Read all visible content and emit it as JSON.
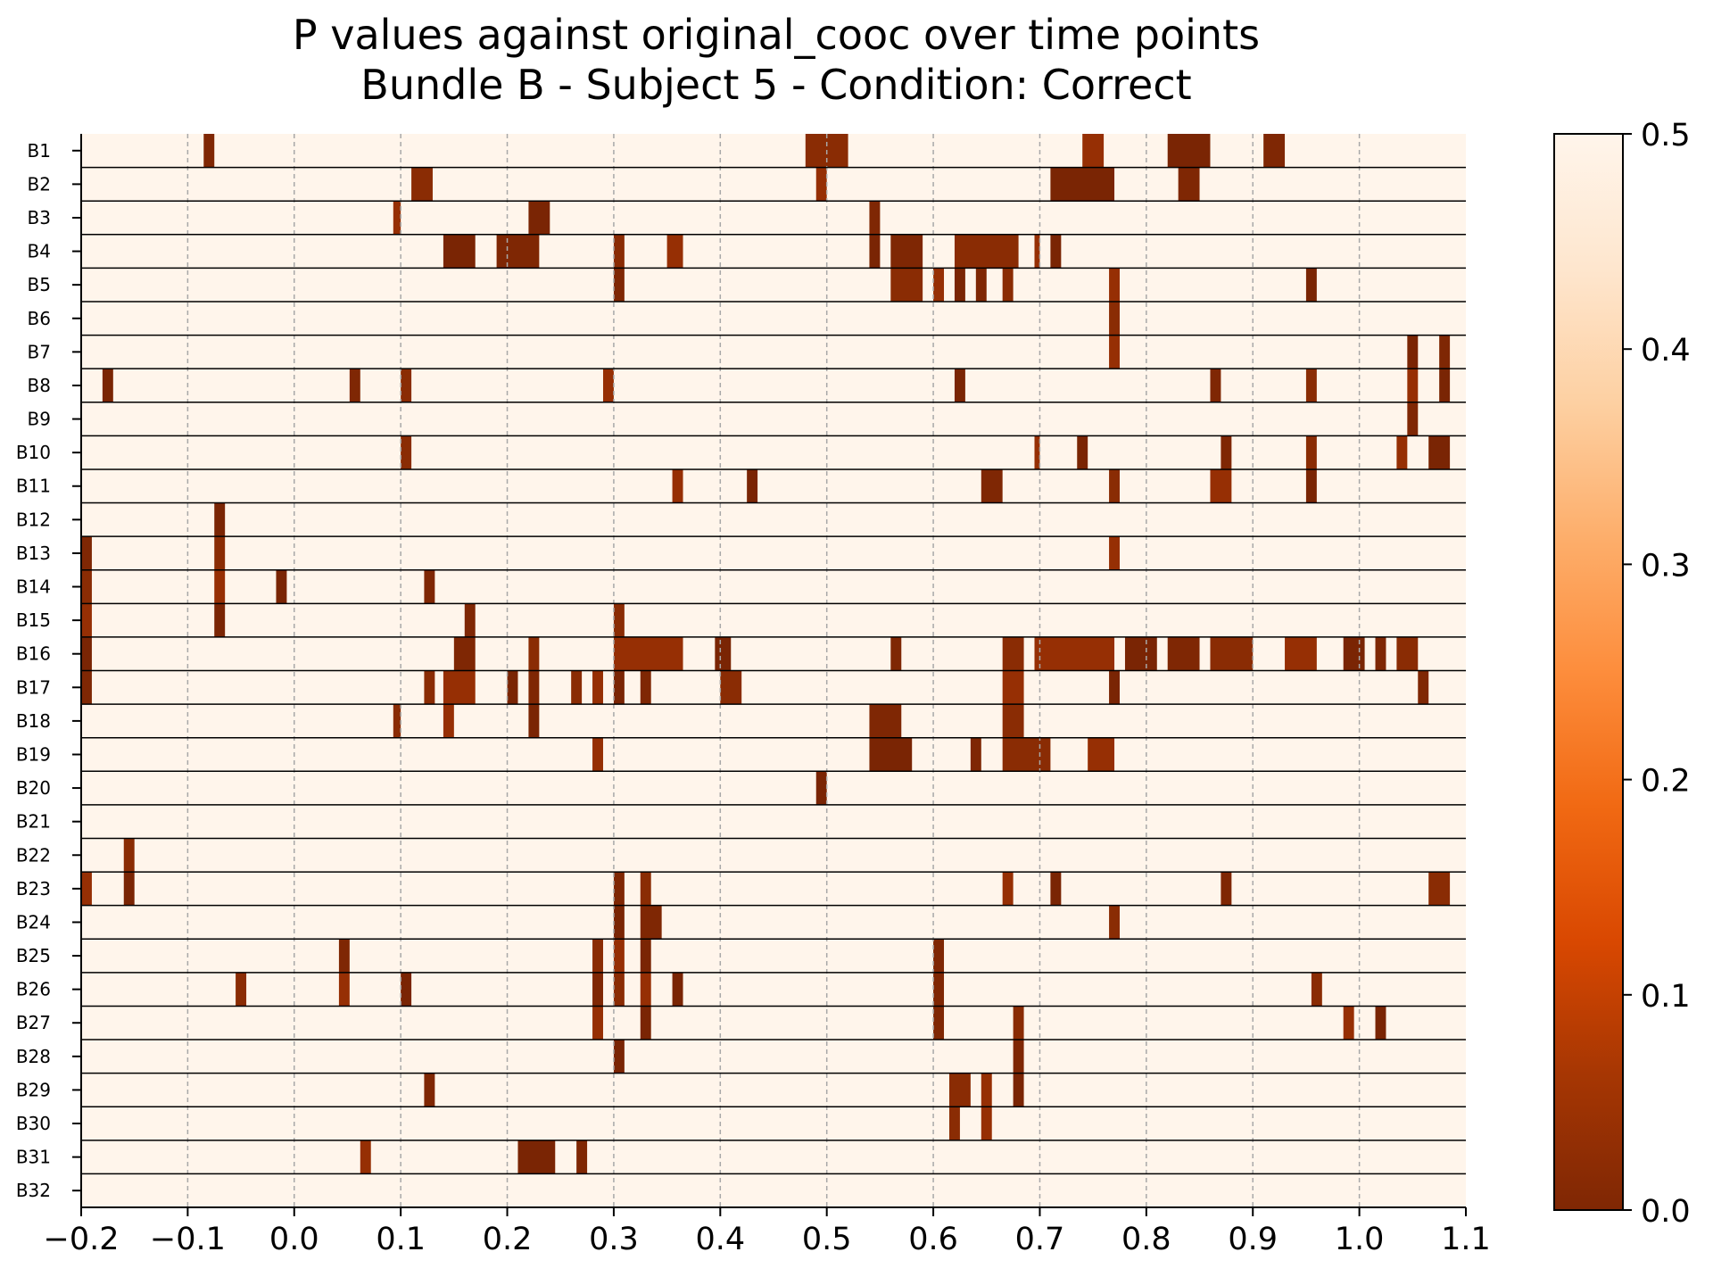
{
  "chart_data": {
    "type": "heatmap",
    "title": "P values against original_cooc over time points",
    "subtitle": "Bundle B - Subject 5 - Condition: Correct",
    "xlabel": "",
    "ylabel": "",
    "xlim": [
      -0.2,
      1.1
    ],
    "xticks": [
      -0.2,
      -0.1,
      0.0,
      0.1,
      0.2,
      0.3,
      0.4,
      0.5,
      0.6,
      0.7,
      0.8,
      0.9,
      1.0,
      1.1
    ],
    "xtick_labels": [
      "−0.2",
      "−0.1",
      "0.0",
      "0.1",
      "0.2",
      "0.3",
      "0.4",
      "0.5",
      "0.6",
      "0.7",
      "0.8",
      "0.9",
      "1.0",
      "1.1"
    ],
    "grid": "vertical dashed",
    "rows": [
      "B1",
      "B2",
      "B3",
      "B4",
      "B5",
      "B6",
      "B7",
      "B8",
      "B9",
      "B10",
      "B11",
      "B12",
      "B13",
      "B14",
      "B15",
      "B16",
      "B17",
      "B18",
      "B19",
      "B20",
      "B21",
      "B22",
      "B23",
      "B24",
      "B25",
      "B26",
      "B27",
      "B28",
      "B29",
      "B30",
      "B31",
      "B32"
    ],
    "background_value": 0.5,
    "colorbar": {
      "min": 0.0,
      "max": 0.5,
      "ticks": [
        "0.0",
        "0.1",
        "0.2",
        "0.3",
        "0.4",
        "0.5"
      ],
      "colormap": "Oranges_r",
      "stops": [
        "#7f2704",
        "#a63603",
        "#d94801",
        "#f16913",
        "#fd8d3c",
        "#fdae6b",
        "#fdd0a2",
        "#fee6ce",
        "#fff5eb"
      ]
    },
    "significant_segments": [
      {
        "row": "B1",
        "x": [
          [
            -0.085,
            -0.075
          ],
          [
            0.48,
            0.52
          ],
          [
            0.74,
            0.76
          ],
          [
            0.82,
            0.86
          ],
          [
            0.91,
            0.93
          ]
        ]
      },
      {
        "row": "B2",
        "x": [
          [
            0.11,
            0.13
          ],
          [
            0.49,
            0.5
          ],
          [
            0.71,
            0.77
          ],
          [
            0.83,
            0.85
          ]
        ]
      },
      {
        "row": "B3",
        "x": [
          [
            0.093,
            0.1
          ],
          [
            0.22,
            0.24
          ],
          [
            0.54,
            0.55
          ]
        ]
      },
      {
        "row": "B4",
        "x": [
          [
            0.14,
            0.17
          ],
          [
            0.19,
            0.23
          ],
          [
            0.3,
            0.31
          ],
          [
            0.35,
            0.365
          ],
          [
            0.54,
            0.55
          ],
          [
            0.56,
            0.59
          ],
          [
            0.62,
            0.68
          ],
          [
            0.695,
            0.7
          ],
          [
            0.71,
            0.72
          ]
        ]
      },
      {
        "row": "B5",
        "x": [
          [
            0.3,
            0.31
          ],
          [
            0.56,
            0.59
          ],
          [
            0.6,
            0.61
          ],
          [
            0.62,
            0.63
          ],
          [
            0.64,
            0.65
          ],
          [
            0.665,
            0.675
          ],
          [
            0.765,
            0.775
          ],
          [
            0.95,
            0.96
          ]
        ]
      },
      {
        "row": "B6",
        "x": [
          [
            0.765,
            0.775
          ]
        ]
      },
      {
        "row": "B7",
        "x": [
          [
            0.765,
            0.775
          ],
          [
            1.045,
            1.055
          ],
          [
            1.075,
            1.085
          ]
        ]
      },
      {
        "row": "B8",
        "x": [
          [
            -0.18,
            -0.17
          ],
          [
            0.052,
            0.062
          ],
          [
            0.1,
            0.11
          ],
          [
            0.29,
            0.3
          ],
          [
            0.62,
            0.63
          ],
          [
            0.86,
            0.87
          ],
          [
            0.95,
            0.96
          ],
          [
            1.045,
            1.055
          ],
          [
            1.075,
            1.085
          ]
        ]
      },
      {
        "row": "B9",
        "x": [
          [
            1.045,
            1.055
          ]
        ]
      },
      {
        "row": "B10",
        "x": [
          [
            0.1,
            0.11
          ],
          [
            0.695,
            0.7
          ],
          [
            0.735,
            0.745
          ],
          [
            0.87,
            0.88
          ],
          [
            0.95,
            0.96
          ],
          [
            1.035,
            1.045
          ],
          [
            1.065,
            1.085
          ]
        ]
      },
      {
        "row": "B11",
        "x": [
          [
            0.355,
            0.365
          ],
          [
            0.425,
            0.435
          ],
          [
            0.645,
            0.665
          ],
          [
            0.765,
            0.775
          ],
          [
            0.86,
            0.88
          ],
          [
            0.95,
            0.96
          ]
        ]
      },
      {
        "row": "B12",
        "x": [
          [
            -0.075,
            -0.065
          ]
        ]
      },
      {
        "row": "B13",
        "x": [
          [
            -0.2,
            -0.19
          ],
          [
            -0.075,
            -0.065
          ],
          [
            0.765,
            0.775
          ]
        ]
      },
      {
        "row": "B14",
        "x": [
          [
            -0.2,
            -0.19
          ],
          [
            -0.075,
            -0.065
          ],
          [
            -0.017,
            -0.007
          ],
          [
            0.122,
            0.132
          ]
        ]
      },
      {
        "row": "B15",
        "x": [
          [
            -0.2,
            -0.19
          ],
          [
            -0.075,
            -0.065
          ],
          [
            0.16,
            0.17
          ],
          [
            0.3,
            0.31
          ]
        ]
      },
      {
        "row": "B16",
        "x": [
          [
            -0.2,
            -0.19
          ],
          [
            0.15,
            0.17
          ],
          [
            0.22,
            0.23
          ],
          [
            0.3,
            0.365
          ],
          [
            0.395,
            0.41
          ],
          [
            0.56,
            0.57
          ],
          [
            0.665,
            0.685
          ],
          [
            0.695,
            0.77
          ],
          [
            0.78,
            0.81
          ],
          [
            0.82,
            0.85
          ],
          [
            0.86,
            0.9
          ],
          [
            0.93,
            0.96
          ],
          [
            0.985,
            1.005
          ],
          [
            1.015,
            1.025
          ],
          [
            1.035,
            1.055
          ]
        ]
      },
      {
        "row": "B17",
        "x": [
          [
            -0.2,
            -0.19
          ],
          [
            0.122,
            0.132
          ],
          [
            0.14,
            0.17
          ],
          [
            0.2,
            0.21
          ],
          [
            0.22,
            0.23
          ],
          [
            0.26,
            0.27
          ],
          [
            0.28,
            0.29
          ],
          [
            0.3,
            0.31
          ],
          [
            0.325,
            0.335
          ],
          [
            0.4,
            0.42
          ],
          [
            0.665,
            0.685
          ],
          [
            0.765,
            0.775
          ],
          [
            1.055,
            1.065
          ]
        ]
      },
      {
        "row": "B18",
        "x": [
          [
            0.093,
            0.1
          ],
          [
            0.14,
            0.15
          ],
          [
            0.22,
            0.23
          ],
          [
            0.54,
            0.57
          ],
          [
            0.665,
            0.685
          ]
        ]
      },
      {
        "row": "B19",
        "x": [
          [
            0.28,
            0.29
          ],
          [
            0.54,
            0.58
          ],
          [
            0.635,
            0.645
          ],
          [
            0.665,
            0.71
          ],
          [
            0.745,
            0.77
          ]
        ]
      },
      {
        "row": "B20",
        "x": [
          [
            0.49,
            0.5
          ]
        ]
      },
      {
        "row": "B21",
        "x": []
      },
      {
        "row": "B22",
        "x": [
          [
            -0.16,
            -0.15
          ]
        ]
      },
      {
        "row": "B23",
        "x": [
          [
            -0.2,
            -0.19
          ],
          [
            -0.16,
            -0.15
          ],
          [
            0.3,
            0.31
          ],
          [
            0.325,
            0.335
          ],
          [
            0.665,
            0.675
          ],
          [
            0.71,
            0.72
          ],
          [
            0.87,
            0.88
          ],
          [
            1.065,
            1.085
          ]
        ]
      },
      {
        "row": "B24",
        "x": [
          [
            0.3,
            0.31
          ],
          [
            0.325,
            0.345
          ],
          [
            0.765,
            0.775
          ]
        ]
      },
      {
        "row": "B25",
        "x": [
          [
            0.042,
            0.052
          ],
          [
            0.28,
            0.29
          ],
          [
            0.3,
            0.31
          ],
          [
            0.325,
            0.335
          ],
          [
            0.6,
            0.61
          ]
        ]
      },
      {
        "row": "B26",
        "x": [
          [
            -0.055,
            -0.045
          ],
          [
            0.042,
            0.052
          ],
          [
            0.1,
            0.11
          ],
          [
            0.28,
            0.29
          ],
          [
            0.3,
            0.31
          ],
          [
            0.325,
            0.335
          ],
          [
            0.355,
            0.365
          ],
          [
            0.6,
            0.61
          ],
          [
            0.955,
            0.965
          ]
        ]
      },
      {
        "row": "B27",
        "x": [
          [
            0.28,
            0.29
          ],
          [
            0.325,
            0.335
          ],
          [
            0.6,
            0.61
          ],
          [
            0.675,
            0.685
          ],
          [
            0.985,
            0.995
          ],
          [
            1.015,
            1.025
          ]
        ]
      },
      {
        "row": "B28",
        "x": [
          [
            0.3,
            0.31
          ],
          [
            0.675,
            0.685
          ]
        ]
      },
      {
        "row": "B29",
        "x": [
          [
            0.122,
            0.132
          ],
          [
            0.615,
            0.635
          ],
          [
            0.645,
            0.655
          ],
          [
            0.675,
            0.685
          ]
        ]
      },
      {
        "row": "B30",
        "x": [
          [
            0.615,
            0.625
          ],
          [
            0.645,
            0.655
          ]
        ]
      },
      {
        "row": "B31",
        "x": [
          [
            0.062,
            0.072
          ],
          [
            0.21,
            0.245
          ],
          [
            0.265,
            0.275
          ]
        ]
      },
      {
        "row": "B32",
        "x": []
      }
    ]
  }
}
